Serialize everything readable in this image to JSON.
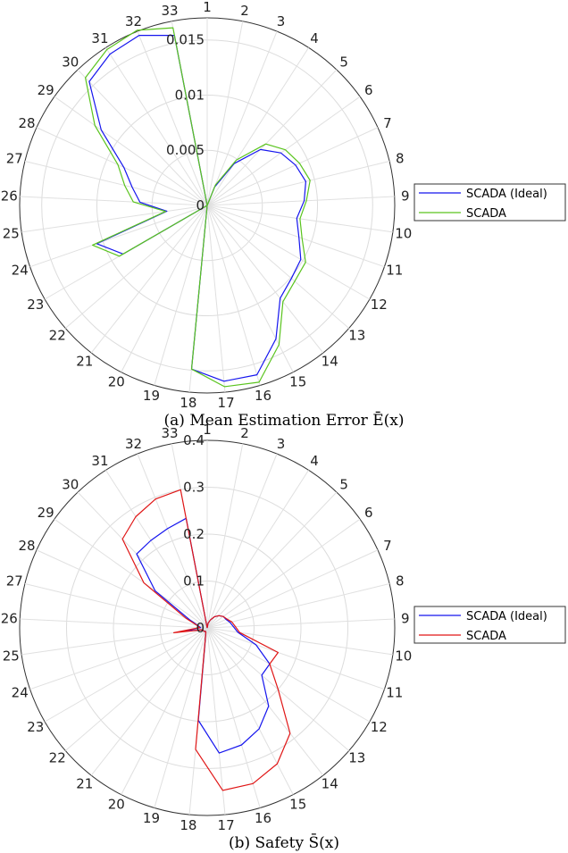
{
  "chart_data": [
    {
      "type": "polar",
      "caption": "(a) Mean Estimation Error Ē(x)",
      "angle_labels": [
        "1",
        "2",
        "3",
        "4",
        "5",
        "6",
        "7",
        "8",
        "9",
        "10",
        "11",
        "12",
        "13",
        "14",
        "15",
        "16",
        "17",
        "18",
        "19",
        "20",
        "21",
        "22",
        "23",
        "24",
        "25",
        "26",
        "27",
        "28",
        "29",
        "30",
        "31",
        "32",
        "33"
      ],
      "rlim": [
        0,
        0.017
      ],
      "r_ticks": [
        0,
        0.005,
        0.01,
        0.015
      ],
      "r_tick_labels": [
        "0",
        "0.005",
        "0.01",
        "0.015"
      ],
      "grid": true,
      "legend_position": "right",
      "series": [
        {
          "name": "SCADA (Ideal)",
          "color": "#1515ee",
          "values": [
            0,
            0,
            0.0018,
            0.0045,
            0.007,
            0.0082,
            0.0088,
            0.0092,
            0.0088,
            0.0082,
            0.0088,
            0.0098,
            0.0101,
            0.0107,
            0.0136,
            0.016,
            0.016,
            0.0149,
            0,
            0,
            0,
            0,
            0.0088,
            0.0106,
            0.0037,
            0.0061,
            0.007,
            0.0083,
            0.0118,
            0.0155,
            0.0163,
            0.0166,
            0.0157
          ]
        },
        {
          "name": "SCADA",
          "color": "#5ac41e",
          "values": [
            0,
            0,
            0.002,
            0.0049,
            0.0077,
            0.0087,
            0.0092,
            0.0096,
            0.009,
            0.0085,
            0.0091,
            0.0103,
            0.0105,
            0.0111,
            0.0142,
            0.0167,
            0.0165,
            0.0149,
            0,
            0,
            0,
            0,
            0.0092,
            0.011,
            0.0038,
            0.0067,
            0.0077,
            0.0089,
            0.0125,
            0.016,
            0.0168,
            0.0171,
            0.0164
          ]
        }
      ]
    },
    {
      "type": "polar",
      "caption": "(b) Safety S̄(x)",
      "angle_labels": [
        "1",
        "2",
        "3",
        "4",
        "5",
        "6",
        "7",
        "8",
        "9",
        "10",
        "11",
        "12",
        "13",
        "14",
        "15",
        "16",
        "17",
        "18",
        "19",
        "20",
        "21",
        "22",
        "23",
        "24",
        "25",
        "26",
        "27",
        "28",
        "29",
        "30",
        "31",
        "32",
        "33"
      ],
      "rlim": [
        0,
        0.4
      ],
      "r_ticks": [
        0,
        0.1,
        0.2,
        0.3,
        0.4
      ],
      "r_tick_labels": [
        "0",
        "0.1",
        "0.2",
        "0.3",
        "0.4"
      ],
      "grid": true,
      "legend_position": "right",
      "series": [
        {
          "name": "SCADA (Ideal)",
          "color": "#1515ee",
          "values": [
            0,
            0.01,
            0.018,
            0.028,
            0.036,
            0.042,
            0.044,
            0.05,
            0.056,
            0.066,
            0.11,
            0.154,
            0.154,
            0.212,
            0.242,
            0.26,
            0.268,
            0.198,
            0.01,
            0.008,
            0.01,
            0.01,
            0.01,
            0.012,
            0.05,
            0.014,
            0.02,
            0.04,
            0.136,
            0.218,
            0.222,
            0.228,
            0.238
          ]
        },
        {
          "name": "SCADA",
          "color": "#e01616",
          "values": [
            0,
            0.01,
            0.018,
            0.028,
            0.036,
            0.042,
            0.046,
            0.054,
            0.06,
            0.07,
            0.16,
            0.154,
            0.2,
            0.286,
            0.326,
            0.346,
            0.348,
            0.26,
            0.01,
            0.008,
            0.01,
            0.01,
            0.01,
            0.012,
            0.072,
            0.016,
            0.022,
            0.05,
            0.166,
            0.262,
            0.282,
            0.296,
            0.3
          ]
        }
      ]
    }
  ]
}
